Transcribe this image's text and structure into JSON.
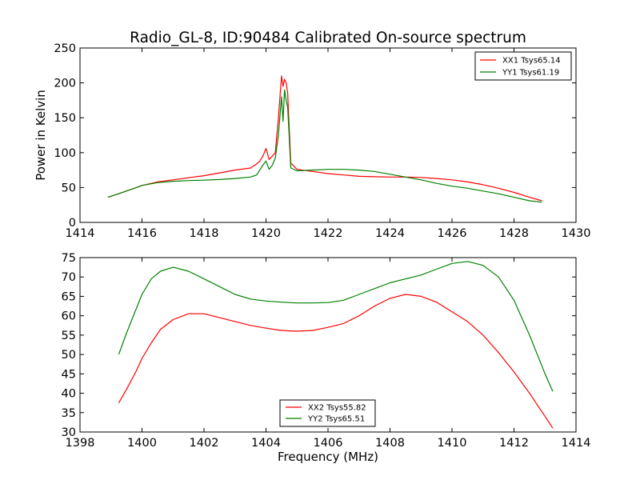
{
  "figure": {
    "title": "Radio_GL-8, ID:90484 Calibrated On-source spectrum"
  },
  "chart_data": [
    {
      "type": "line",
      "title": "Radio_GL-8, ID:90484 Calibrated On-source spectrum",
      "xlabel": "",
      "ylabel": "Power in Kelvin",
      "xlim": [
        1414,
        1430
      ],
      "ylim": [
        0,
        250
      ],
      "xticks": [
        "1414",
        "1416",
        "1418",
        "1420",
        "1422",
        "1424",
        "1426",
        "1428",
        "1430"
      ],
      "yticks": [
        "0",
        "50",
        "100",
        "150",
        "200",
        "250"
      ],
      "grid": false,
      "legend_position": "top-right",
      "series": [
        {
          "name": "XX1 Tsys65.14",
          "color": "#ff0000",
          "x": [
            1414.9,
            1415.3,
            1415.7,
            1416.0,
            1416.5,
            1417.0,
            1417.5,
            1418.0,
            1418.5,
            1419.0,
            1419.5,
            1419.7,
            1419.8,
            1419.9,
            1420.0,
            1420.1,
            1420.2,
            1420.3,
            1420.4,
            1420.5,
            1420.55,
            1420.6,
            1420.65,
            1420.7,
            1420.8,
            1421.0,
            1421.5,
            1422.0,
            1422.5,
            1423.0,
            1423.5,
            1424.0,
            1424.5,
            1425.0,
            1425.5,
            1426.0,
            1426.5,
            1427.0,
            1427.5,
            1428.0,
            1428.5,
            1428.9
          ],
          "values": [
            36,
            42,
            48,
            53,
            58,
            61,
            64,
            67,
            71,
            75,
            78,
            84,
            88,
            95,
            106,
            90,
            95,
            100,
            150,
            210,
            195,
            205,
            200,
            185,
            85,
            76,
            73,
            70,
            68,
            66,
            65.5,
            65,
            65,
            64.5,
            63,
            61,
            58,
            54,
            49,
            43,
            36,
            31
          ]
        },
        {
          "name": "YY1 Tsys61.19",
          "color": "#008000",
          "x": [
            1414.9,
            1415.3,
            1415.7,
            1416.0,
            1416.5,
            1417.0,
            1417.5,
            1418.0,
            1418.5,
            1419.0,
            1419.5,
            1419.7,
            1419.8,
            1419.9,
            1420.0,
            1420.1,
            1420.2,
            1420.3,
            1420.4,
            1420.5,
            1420.55,
            1420.6,
            1420.65,
            1420.7,
            1420.8,
            1421.0,
            1421.5,
            1422.0,
            1422.5,
            1423.0,
            1423.5,
            1424.0,
            1424.5,
            1425.0,
            1425.5,
            1426.0,
            1426.5,
            1427.0,
            1427.5,
            1428.0,
            1428.5,
            1428.9
          ],
          "values": [
            36,
            42,
            48,
            53,
            57,
            59,
            60,
            60.5,
            61.5,
            63,
            65,
            68,
            75,
            82,
            88,
            76,
            82,
            92,
            125,
            180,
            145,
            190,
            175,
            165,
            78,
            74,
            75,
            76,
            76,
            75,
            73,
            69,
            65,
            61,
            56,
            52,
            49,
            45,
            41,
            36,
            31,
            29
          ]
        }
      ]
    },
    {
      "type": "line",
      "title": "",
      "xlabel": "Frequency (MHz)",
      "ylabel": "",
      "xlim": [
        1398,
        1414
      ],
      "ylim": [
        30,
        75
      ],
      "xticks": [
        "1398",
        "1400",
        "1402",
        "1404",
        "1406",
        "1408",
        "1410",
        "1412",
        "1414"
      ],
      "yticks": [
        "30",
        "35",
        "40",
        "45",
        "50",
        "55",
        "60",
        "65",
        "70",
        "75"
      ],
      "grid": false,
      "legend_position": "bottom-center",
      "series": [
        {
          "name": "XX2 Tsys55.82",
          "color": "#ff0000",
          "x": [
            1399.25,
            1399.5,
            1399.8,
            1400.0,
            1400.3,
            1400.6,
            1401.0,
            1401.5,
            1402.0,
            1402.5,
            1403.0,
            1403.5,
            1404.0,
            1404.5,
            1405.0,
            1405.5,
            1406.0,
            1406.5,
            1407.0,
            1407.5,
            1408.0,
            1408.5,
            1409.0,
            1409.5,
            1410.0,
            1410.5,
            1411.0,
            1411.5,
            1412.0,
            1412.5,
            1413.0,
            1413.25
          ],
          "values": [
            37.5,
            41,
            45.5,
            49,
            53,
            56.5,
            59,
            60.5,
            60.5,
            59.5,
            58.5,
            57.5,
            56.8,
            56.2,
            56,
            56.2,
            57,
            58,
            60,
            62.5,
            64.5,
            65.5,
            65,
            63.5,
            61,
            58.5,
            55,
            50.5,
            45.5,
            40,
            34,
            31
          ]
        },
        {
          "name": "YY2 Tsys65.51",
          "color": "#008000",
          "x": [
            1399.25,
            1399.5,
            1399.8,
            1400.0,
            1400.3,
            1400.6,
            1401.0,
            1401.5,
            1402.0,
            1402.5,
            1403.0,
            1403.5,
            1404.0,
            1404.5,
            1405.0,
            1405.5,
            1406.0,
            1406.5,
            1407.0,
            1407.5,
            1408.0,
            1408.5,
            1409.0,
            1409.5,
            1410.0,
            1410.5,
            1411.0,
            1411.5,
            1412.0,
            1412.5,
            1413.0,
            1413.25
          ],
          "values": [
            50,
            55.5,
            61.5,
            65.5,
            69.5,
            71.5,
            72.5,
            71.5,
            69.5,
            67.5,
            65.5,
            64.3,
            63.8,
            63.5,
            63.3,
            63.3,
            63.4,
            64,
            65.5,
            67,
            68.5,
            69.5,
            70.5,
            72,
            73.5,
            74,
            73,
            70,
            64,
            55,
            45,
            40.5
          ]
        }
      ]
    }
  ]
}
